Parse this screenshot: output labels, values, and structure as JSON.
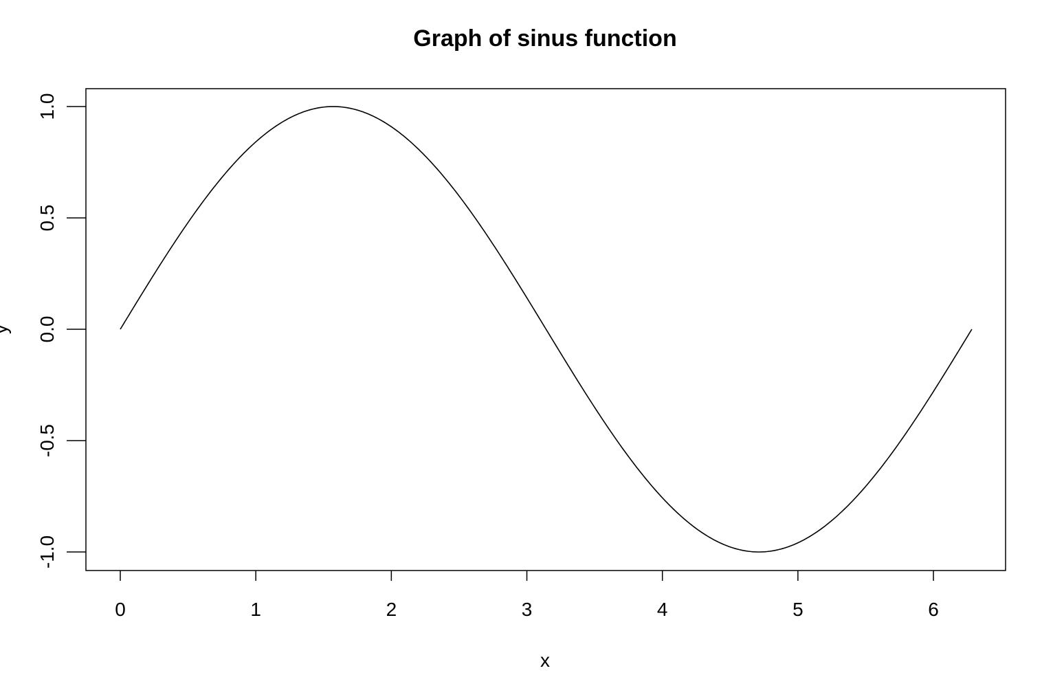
{
  "chart_data": {
    "type": "line",
    "title": "Graph of sinus function",
    "xlabel": "x",
    "ylabel": "y",
    "xlim": [
      0,
      6.2832
    ],
    "ylim": [
      -1,
      1
    ],
    "x_ticks": [
      0,
      1,
      2,
      3,
      4,
      5,
      6
    ],
    "x_tick_labels": [
      "0",
      "1",
      "2",
      "3",
      "4",
      "5",
      "6"
    ],
    "y_ticks": [
      -1,
      -0.5,
      0,
      0.5,
      1
    ],
    "y_tick_labels": [
      "-1.0",
      "-0.5",
      "0.0",
      "0.5",
      "1.0"
    ],
    "grid": false,
    "line_color": "#000000",
    "series": [
      {
        "x": [
          0,
          0.2,
          0.4,
          0.6,
          0.8,
          1.0,
          1.2,
          1.4,
          1.5708,
          1.8,
          2.0,
          2.2,
          2.4,
          2.6,
          2.8,
          3.0,
          3.1416,
          3.4,
          3.6,
          3.8,
          4.0,
          4.2,
          4.4,
          4.6,
          4.7124,
          4.9,
          5.1,
          5.3,
          5.5,
          5.7,
          5.9,
          6.1,
          6.2832
        ],
        "values": [
          0,
          0.199,
          0.389,
          0.565,
          0.717,
          0.841,
          0.932,
          0.985,
          1.0,
          0.974,
          0.909,
          0.808,
          0.675,
          0.516,
          0.335,
          0.141,
          0,
          -0.256,
          -0.443,
          -0.612,
          -0.757,
          -0.872,
          -0.952,
          -0.994,
          -1.0,
          -0.982,
          -0.926,
          -0.832,
          -0.706,
          -0.551,
          -0.374,
          -0.182,
          0
        ]
      }
    ]
  }
}
